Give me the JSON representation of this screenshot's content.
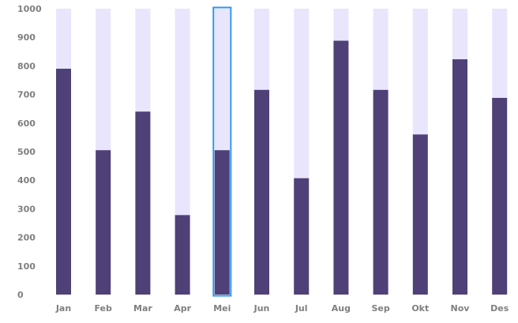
{
  "chart_data": {
    "type": "bar",
    "categories": [
      "Jan",
      "Feb",
      "Mar",
      "Apr",
      "Mei",
      "Jun",
      "Jul",
      "Aug",
      "Sep",
      "Okt",
      "Nov",
      "Des"
    ],
    "values": [
      790,
      505,
      640,
      278,
      505,
      716,
      407,
      888,
      716,
      560,
      823,
      688
    ],
    "background_value": 1000,
    "ylim": [
      0,
      1000
    ],
    "yticks": [
      0,
      100,
      200,
      300,
      400,
      500,
      600,
      700,
      800,
      900,
      1000
    ],
    "highlighted_category": "Mei",
    "title": "",
    "xlabel": "",
    "ylabel": "",
    "grid": false,
    "colors": {
      "bar": "#4f4177",
      "bar_background": "#e9e5fd",
      "highlight_border": "#2f95ec",
      "tick_text": "#7f7f7f"
    }
  }
}
